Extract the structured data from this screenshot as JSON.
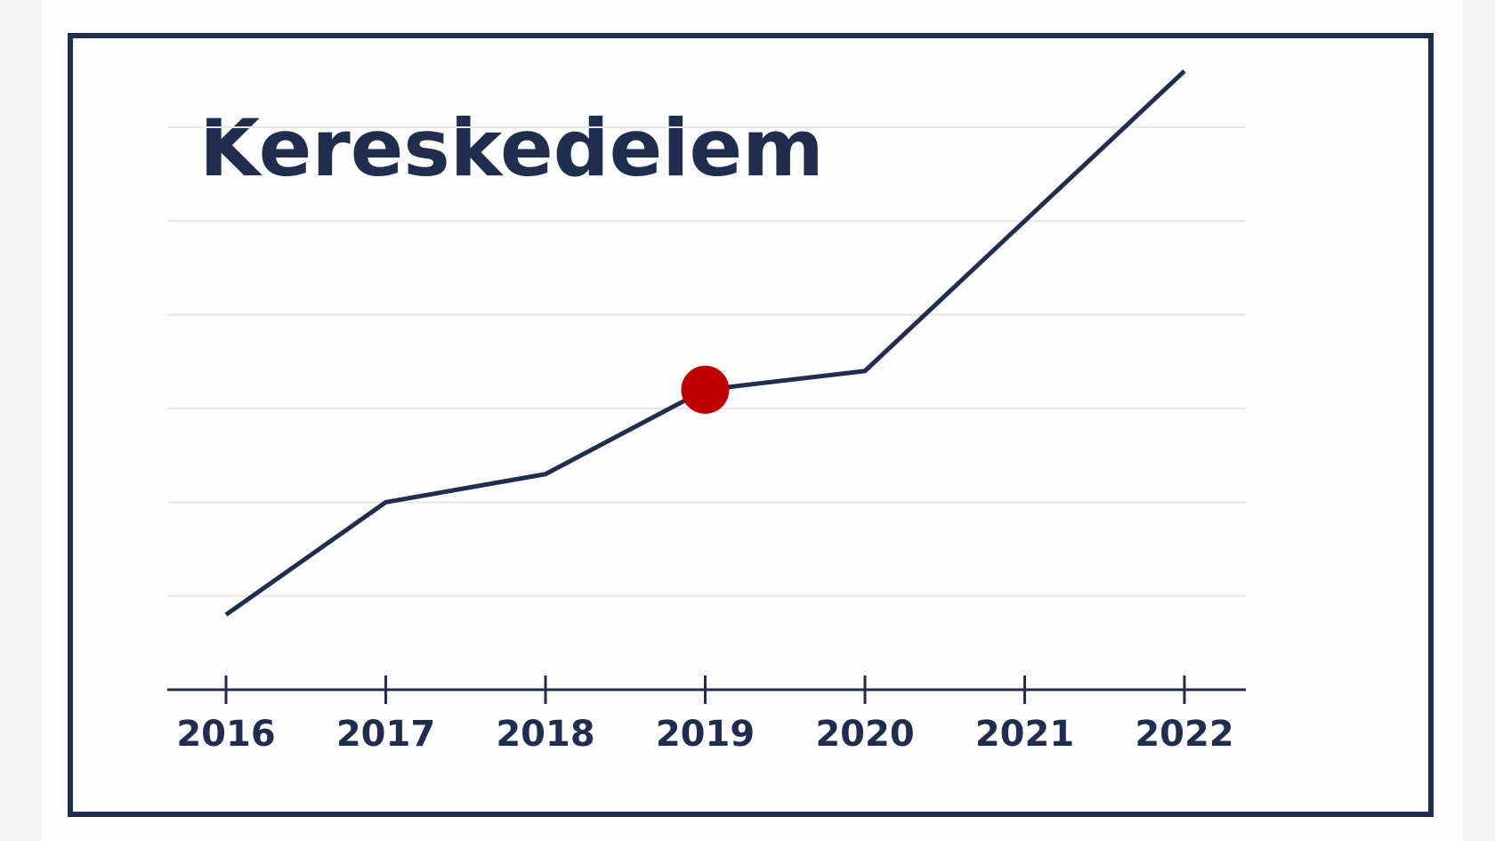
{
  "chart_data": {
    "type": "line",
    "title": "Kereskedelem",
    "categories": [
      "2016",
      "2017",
      "2018",
      "2019",
      "2020",
      "2021",
      "2022"
    ],
    "values": [
      0.8,
      2.0,
      2.3,
      3.2,
      3.4,
      5.0,
      6.6
    ],
    "color": "#1f2d4e",
    "ylim": [
      0,
      6
    ],
    "yticks": [
      1,
      2,
      3,
      4,
      5,
      6
    ],
    "grid": true,
    "highlight_index": 3,
    "highlight_color": "#c00000"
  }
}
